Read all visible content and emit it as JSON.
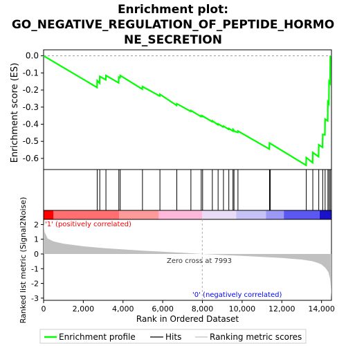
{
  "chart_data": {
    "type": "line",
    "title": "Enrichment plot: GO_NEGATIVE_REGULATION_OF_PEPTIDE_HORMONE_SECRETION",
    "title_lines": [
      "Enrichment plot:",
      "GO_NEGATIVE_REGULATION_OF_PEPTIDE_HORMO",
      "NE_SECRETION"
    ],
    "xlabel": "Rank in Ordered Dataset",
    "xlim": [
      0,
      14500
    ],
    "x_ticks": [
      0,
      2000,
      4000,
      6000,
      8000,
      10000,
      12000,
      14000
    ],
    "x_tick_labels": [
      "0",
      "2,000",
      "4,000",
      "6,000",
      "8,000",
      "10,000",
      "12,000",
      "14,000"
    ],
    "es_panel": {
      "ylabel": "Enrichment score (ES)",
      "ylim": [
        -0.665,
        0.035
      ],
      "y_ticks": [
        0.0,
        -0.1,
        -0.2,
        -0.3,
        -0.4,
        -0.5,
        -0.6
      ],
      "y_tick_labels": [
        "0.0",
        "-0.1",
        "-0.2",
        "-0.3",
        "-0.4",
        "-0.5",
        "-0.6"
      ],
      "line_color": "#00ff00",
      "series": [
        {
          "name": "Enrichment profile",
          "x": [
            0,
            2690,
            2700,
            2820,
            2830,
            3130,
            3140,
            3780,
            3790,
            3850,
            3860,
            4970,
            4980,
            5850,
            5860,
            6700,
            6710,
            7410,
            7420,
            7930,
            7940,
            8000,
            8010,
            8490,
            8500,
            8780,
            8790,
            9050,
            9060,
            9320,
            9330,
            9530,
            9540,
            9580,
            9590,
            9780,
            9790,
            11370,
            11380,
            13220,
            13230,
            13550,
            13560,
            13850,
            13860,
            14050,
            14060,
            14170,
            14180,
            14310,
            14320,
            14370,
            14380,
            14430,
            14440
          ],
          "y": [
            0.0,
            -0.185,
            -0.145,
            -0.16,
            -0.12,
            -0.14,
            -0.115,
            -0.158,
            -0.125,
            -0.128,
            -0.115,
            -0.195,
            -0.18,
            -0.235,
            -0.225,
            -0.29,
            -0.28,
            -0.325,
            -0.32,
            -0.355,
            -0.35,
            -0.355,
            -0.352,
            -0.385,
            -0.38,
            -0.403,
            -0.398,
            -0.416,
            -0.411,
            -0.43,
            -0.425,
            -0.44,
            -0.43,
            -0.435,
            -0.44,
            -0.448,
            -0.44,
            -0.545,
            -0.51,
            -0.64,
            -0.595,
            -0.625,
            -0.565,
            -0.59,
            -0.52,
            -0.535,
            -0.46,
            -0.462,
            -0.37,
            -0.38,
            -0.27,
            -0.28,
            -0.15,
            -0.16,
            0.0
          ]
        }
      ]
    },
    "hits": {
      "name": "Hits",
      "positions": [
        2700,
        2830,
        3140,
        3790,
        3860,
        4980,
        5860,
        6710,
        7420,
        7940,
        8010,
        8500,
        8790,
        9060,
        9330,
        9540,
        9590,
        9790,
        11380,
        11420,
        13230,
        13560,
        13860,
        14060,
        14180,
        14320,
        14380,
        14440
      ]
    },
    "rank_heatmap": {
      "left_label": "'1' (positively correlated)",
      "right_label": "'0' (negatively correlated)",
      "left_label_color": "#ff0000",
      "right_label_color": "#0000ff",
      "bands": [
        {
          "to": 500,
          "color": "#ff0000"
        },
        {
          "to": 3800,
          "color": "#ff6f6f"
        },
        {
          "to": 5800,
          "color": "#ff9a9a"
        },
        {
          "to": 7993,
          "color": "#ffb8da"
        },
        {
          "to": 9700,
          "color": "#e8dcf6"
        },
        {
          "to": 11200,
          "color": "#c7c2f6"
        },
        {
          "to": 12100,
          "color": "#9c98f6"
        },
        {
          "to": 13900,
          "color": "#5a58f0"
        },
        {
          "to": 14500,
          "color": "#1a12c8"
        }
      ]
    },
    "metric_panel": {
      "ylabel": "Ranked list metric (Signal2Noise)",
      "ylim": [
        -3.15,
        2.35
      ],
      "y_ticks": [
        2,
        1,
        0,
        -1,
        -2,
        -3
      ],
      "y_tick_labels": [
        "2",
        "1",
        "0",
        "-1",
        "-2",
        "-3"
      ],
      "fill_color": "#c0c0c0",
      "zero_cross": 7993,
      "zero_cross_label": "Zero cross at 7993",
      "profile_x": [
        0,
        50,
        200,
        500,
        1000,
        2000,
        3000,
        4000,
        5000,
        6000,
        7000,
        7993,
        9000,
        10000,
        11000,
        12000,
        13000,
        13500,
        13800,
        14000,
        14200,
        14350,
        14430,
        14470,
        14490,
        14500
      ],
      "profile_y": [
        2.1,
        1.5,
        1.05,
        0.85,
        0.7,
        0.52,
        0.4,
        0.31,
        0.22,
        0.15,
        0.08,
        0.0,
        -0.07,
        -0.13,
        -0.2,
        -0.27,
        -0.38,
        -0.48,
        -0.6,
        -0.72,
        -0.95,
        -1.25,
        -1.7,
        -2.3,
        -2.75,
        -3.0
      ]
    },
    "legend": {
      "position": "bottom",
      "items": [
        {
          "label": "Enrichment profile",
          "color": "#00ff00"
        },
        {
          "label": "Hits",
          "color": "#000000"
        },
        {
          "label": "Ranking metric scores",
          "color": "#c0c0c0"
        }
      ]
    }
  }
}
